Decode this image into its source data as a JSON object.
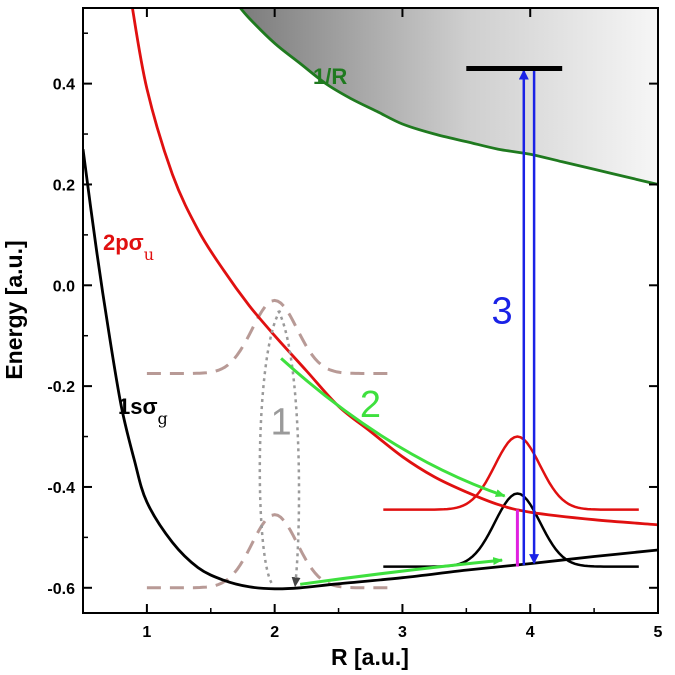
{
  "chart_data": {
    "type": "line",
    "title": "",
    "xlabel": "R [a.u.]",
    "ylabel": "Energy [a.u.]",
    "xlim": [
      0.5,
      5.0
    ],
    "ylim": [
      -0.65,
      0.55
    ],
    "x_ticks": [
      1,
      2,
      3,
      4,
      5
    ],
    "x_tick_labels": [
      "1",
      "2",
      "3",
      "4",
      "5"
    ],
    "y_ticks": [
      -0.6,
      -0.4,
      -0.2,
      0.0,
      0.2,
      0.4
    ],
    "y_tick_labels": [
      "-0.6",
      "-0.4",
      "-0.2",
      "0.0",
      "0.2",
      "0.4"
    ],
    "series": [
      {
        "name": "1/R",
        "label": "1/R",
        "color": "#1f7a1f",
        "x": [
          1.7,
          1.8,
          2.0,
          2.2,
          2.4,
          2.6,
          2.8,
          3.0,
          3.25,
          3.5,
          3.75,
          4.0,
          4.25,
          4.5,
          4.75,
          5.0
        ],
        "y": [
          0.56,
          0.53,
          0.48,
          0.44,
          0.4,
          0.37,
          0.345,
          0.32,
          0.3,
          0.285,
          0.27,
          0.26,
          0.245,
          0.23,
          0.215,
          0.2
        ]
      },
      {
        "name": "2pσu",
        "label_main": "2pσ",
        "label_sub": "u",
        "color": "#e01010",
        "x": [
          0.88,
          1.0,
          1.2,
          1.4,
          1.6,
          1.8,
          2.0,
          2.25,
          2.5,
          2.75,
          3.0,
          3.25,
          3.5,
          3.75,
          4.0,
          4.5,
          5.0
        ],
        "y": [
          0.56,
          0.39,
          0.22,
          0.11,
          0.03,
          -0.04,
          -0.1,
          -0.17,
          -0.24,
          -0.29,
          -0.34,
          -0.38,
          -0.41,
          -0.435,
          -0.45,
          -0.465,
          -0.475
        ]
      },
      {
        "name": "1sσg",
        "label_main": "1sσ",
        "label_sub": "g",
        "color": "#000000",
        "x": [
          0.5,
          0.6,
          0.7,
          0.8,
          0.9,
          1.0,
          1.2,
          1.4,
          1.6,
          1.8,
          2.0,
          2.2,
          2.5,
          3.0,
          3.5,
          4.0,
          4.5,
          5.0
        ],
        "y": [
          0.27,
          0.08,
          -0.09,
          -0.24,
          -0.345,
          -0.43,
          -0.51,
          -0.56,
          -0.585,
          -0.598,
          -0.602,
          -0.6,
          -0.592,
          -0.58,
          -0.565,
          -0.552,
          -0.538,
          -0.525
        ]
      }
    ],
    "continuum_shade": {
      "label": "",
      "from_curve": "1/R",
      "to": "top"
    },
    "wavepackets": [
      {
        "name": "upper-dashed-wavepacket",
        "style": "dashed",
        "color": "#b89a96",
        "center_x": 2.0,
        "width": 0.25,
        "baseline": -0.175,
        "peak": -0.03,
        "x_range": [
          1.0,
          2.95
        ]
      },
      {
        "name": "lower-dashed-wavepacket",
        "style": "dashed",
        "color": "#b89a96",
        "center_x": 2.0,
        "width": 0.25,
        "baseline": -0.6,
        "peak": -0.455,
        "x_range": [
          1.0,
          2.95
        ]
      },
      {
        "name": "red-wavepacket",
        "style": "solid",
        "color": "#e01010",
        "center_x": 3.9,
        "width": 0.25,
        "baseline": -0.445,
        "peak": -0.3,
        "x_range": [
          2.85,
          4.85
        ]
      },
      {
        "name": "black-wavepacket",
        "style": "solid",
        "color": "#000000",
        "center_x": 3.9,
        "width": 0.25,
        "baseline": -0.558,
        "peak": -0.413,
        "x_range": [
          2.85,
          4.85
        ]
      }
    ],
    "annotations": [
      {
        "name": "step-1",
        "text": "1",
        "color": "#9a9a9a",
        "x": 2.05,
        "y": -0.27
      },
      {
        "name": "step-2",
        "text": "2",
        "color": "#3ee03e",
        "x": 2.75,
        "y": -0.235
      },
      {
        "name": "step-3",
        "text": "3",
        "color": "#1a22e6",
        "x": 3.78,
        "y": -0.05
      }
    ],
    "level_bar": {
      "x_range": [
        3.5,
        4.25
      ],
      "y": 0.43,
      "color": "#000000"
    },
    "arrows": [
      {
        "name": "ionization-arrow-up",
        "color": "#1a22e6",
        "x": 3.95,
        "y_from": -0.555,
        "y_to": 0.43
      },
      {
        "name": "ionization-arrow-down",
        "color": "#1a22e6",
        "x": 4.03,
        "y_from": 0.43,
        "y_to": -0.555
      },
      {
        "name": "excitation-bar",
        "color": "#e020e0",
        "x": 3.9,
        "y_from": -0.445,
        "y_to": -0.558
      }
    ]
  }
}
